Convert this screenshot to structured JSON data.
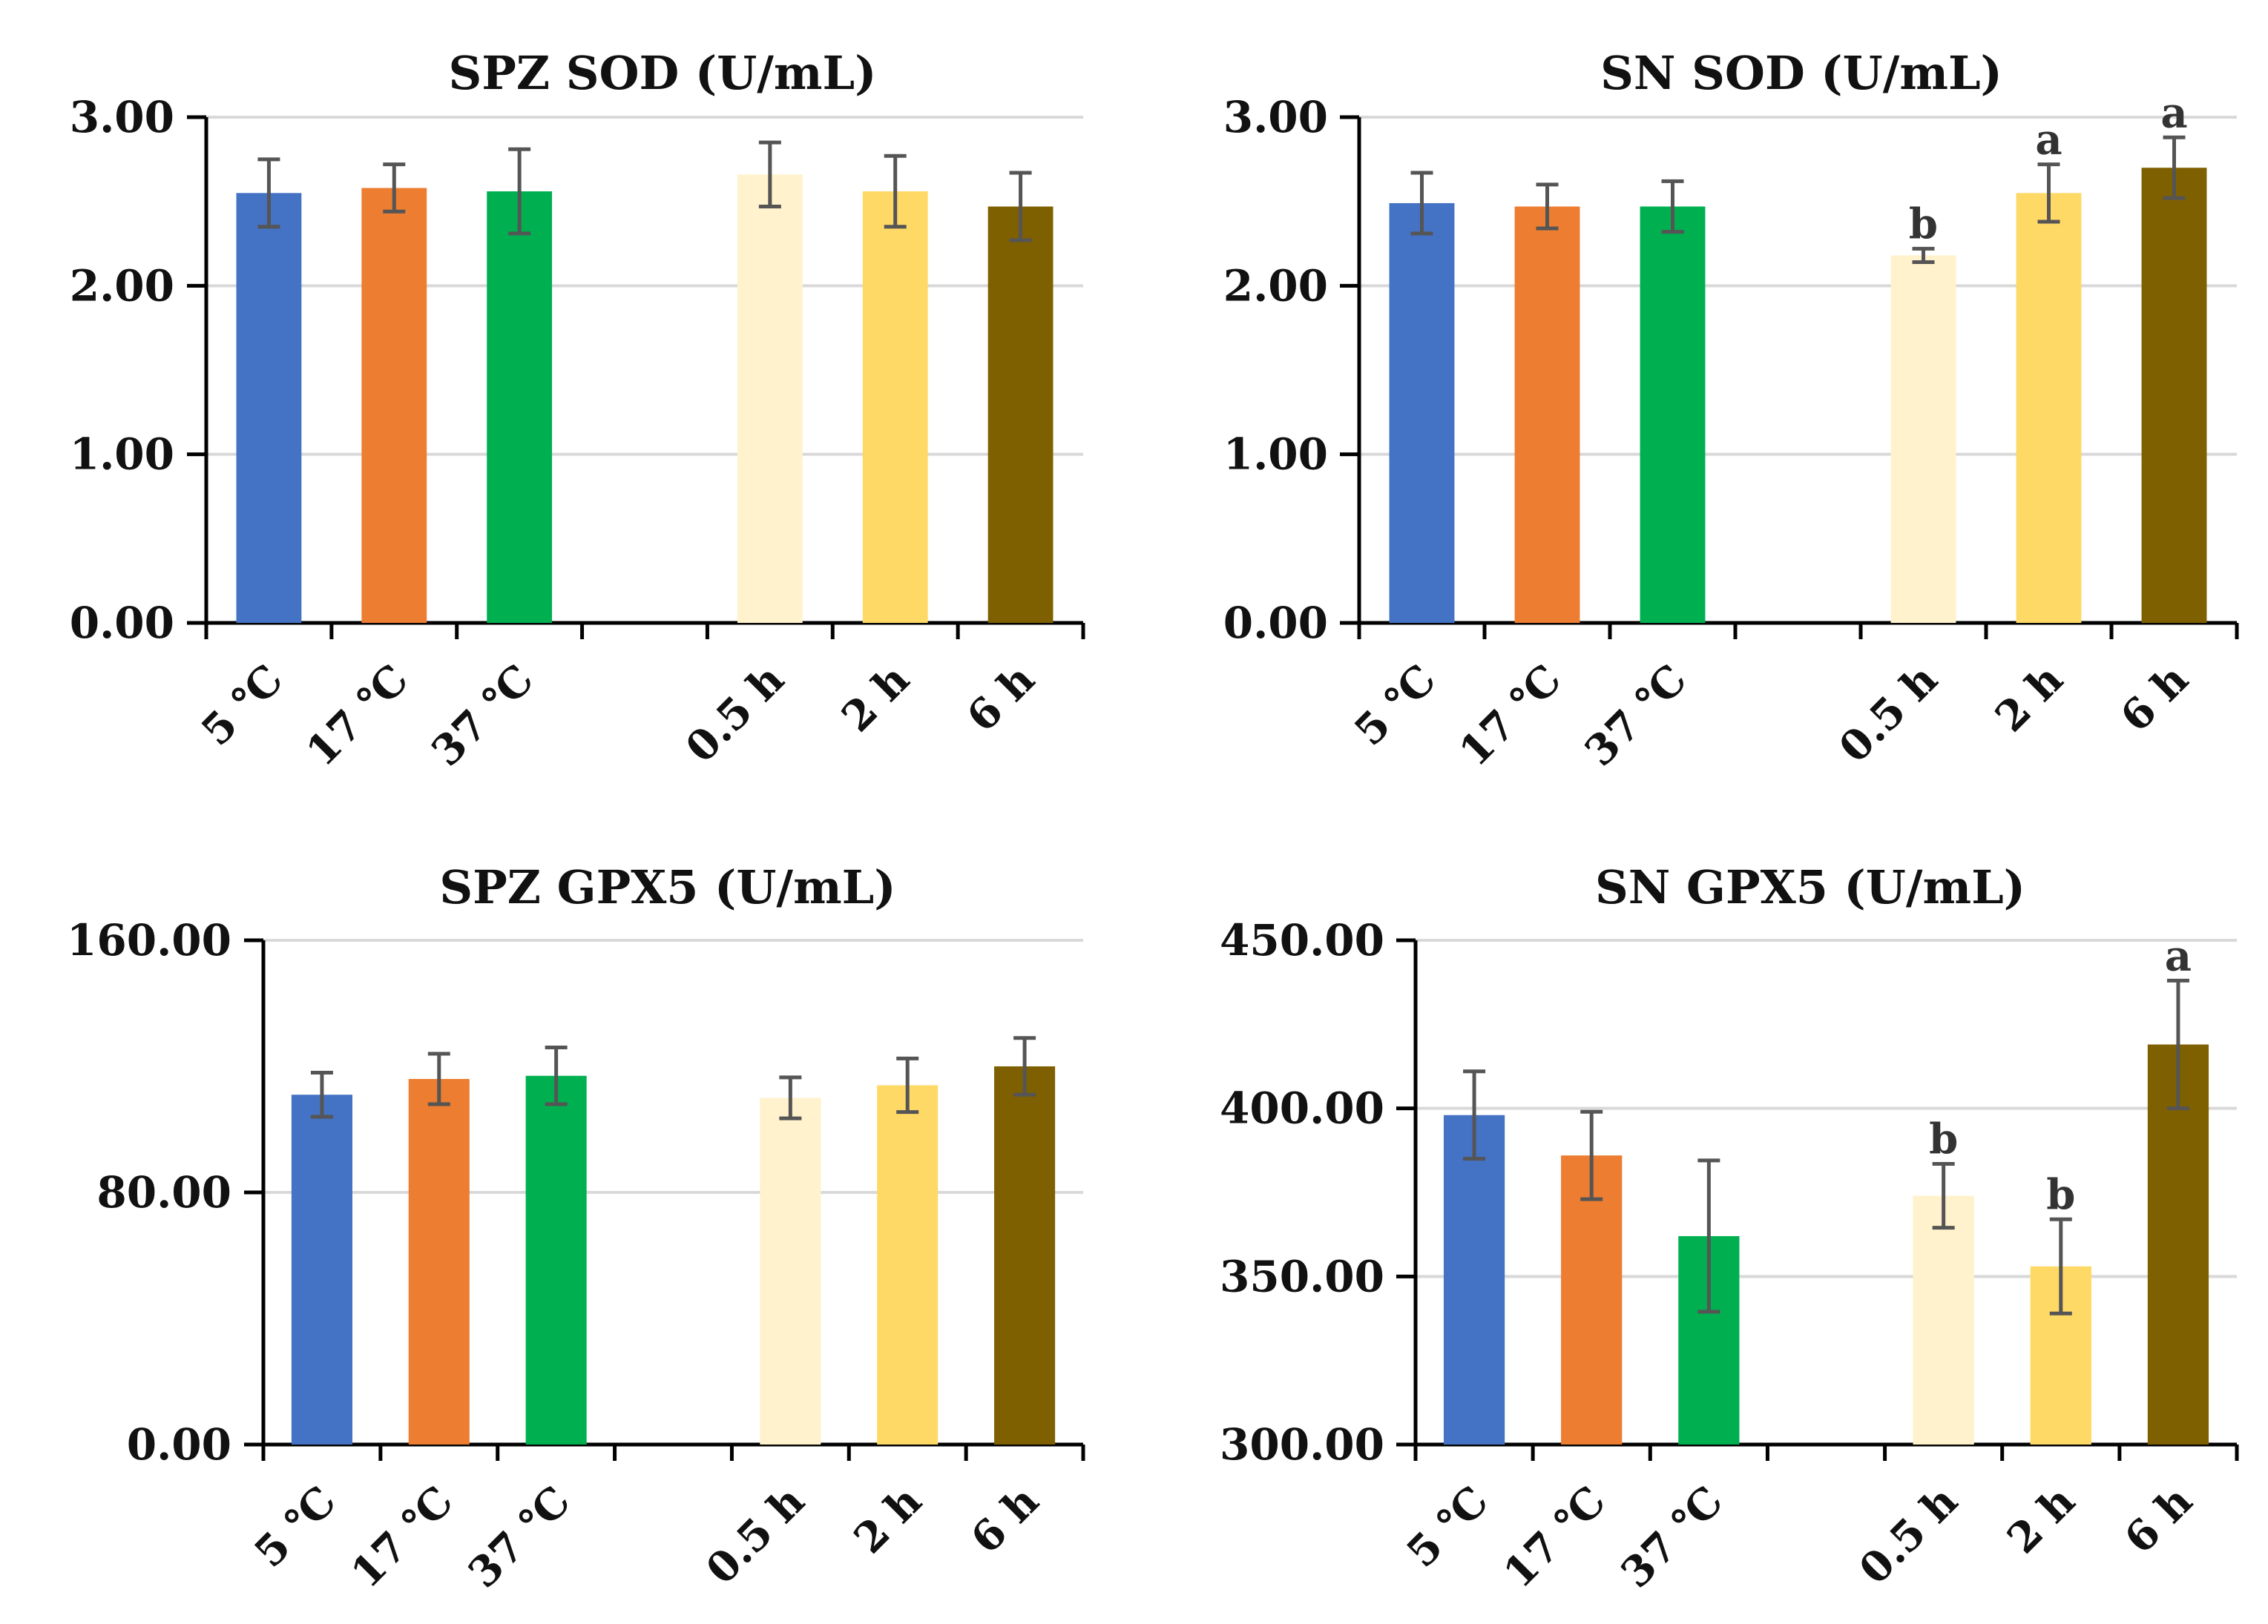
{
  "figure": {
    "categories": [
      "5 ℃",
      "17 ℃",
      "37 ℃",
      "0.5 h",
      "2 h",
      "6 h"
    ],
    "gap_after_index": 2,
    "colors": [
      "#4472C4",
      "#ED7D31",
      "#00B050",
      "#FFF2CC",
      "#FFD966",
      "#7F6000"
    ]
  },
  "chart_data": [
    {
      "type": "bar",
      "title": "SPZ SOD (U/mL)",
      "categories": [
        "5 ℃",
        "17 ℃",
        "37 ℃",
        "0.5 h",
        "2 h",
        "6 h"
      ],
      "values": [
        2.55,
        2.58,
        2.56,
        2.66,
        2.56,
        2.47
      ],
      "errors": [
        0.2,
        0.14,
        0.25,
        0.19,
        0.21,
        0.2
      ],
      "significance": [
        "",
        "",
        "",
        "",
        "",
        ""
      ],
      "ylim": [
        0,
        3
      ],
      "yticks": [
        0,
        1,
        2,
        3
      ],
      "ytick_labels": [
        "0.00",
        "1.00",
        "2.00",
        "3.00"
      ],
      "grid": true
    },
    {
      "type": "bar",
      "title": "SN SOD (U/mL)",
      "categories": [
        "5 ℃",
        "17 ℃",
        "37 ℃",
        "0.5 h",
        "2 h",
        "6 h"
      ],
      "values": [
        2.49,
        2.47,
        2.47,
        2.18,
        2.55,
        2.7
      ],
      "errors": [
        0.18,
        0.13,
        0.15,
        0.04,
        0.17,
        0.18
      ],
      "significance": [
        "",
        "",
        "",
        "b",
        "a",
        "a"
      ],
      "ylim": [
        0,
        3
      ],
      "yticks": [
        0,
        1,
        2,
        3
      ],
      "ytick_labels": [
        "0.00",
        "1.00",
        "2.00",
        "3.00"
      ],
      "grid": true
    },
    {
      "type": "bar",
      "title": "SPZ GPX5 (U/mL)",
      "categories": [
        "5 ℃",
        "17 ℃",
        "37 ℃",
        "0.5 h",
        "2 h",
        "6 h"
      ],
      "values": [
        111,
        116,
        117,
        110,
        114,
        120
      ],
      "errors": [
        7,
        8,
        9,
        6.5,
        8.5,
        9
      ],
      "significance": [
        "",
        "",
        "",
        "",
        "",
        ""
      ],
      "ylim": [
        0,
        160
      ],
      "yticks": [
        0,
        80,
        160
      ],
      "ytick_labels": [
        "0.00",
        "80.00",
        "160.00"
      ],
      "grid": true
    },
    {
      "type": "bar",
      "title": "SN GPX5 (U/mL)",
      "categories": [
        "5 ℃",
        "17 ℃",
        "37 ℃",
        "0.5 h",
        "2 h",
        "6 h"
      ],
      "values": [
        398,
        386,
        362,
        374,
        353,
        419
      ],
      "errors": [
        13,
        13,
        22.5,
        9.5,
        14,
        19
      ],
      "significance": [
        "",
        "",
        "",
        "b",
        "b",
        "a"
      ],
      "ylim": [
        300,
        450
      ],
      "yticks": [
        300,
        350,
        400,
        450
      ],
      "ytick_labels": [
        "300.00",
        "350.00",
        "400.00",
        "450.00"
      ],
      "grid": true
    }
  ]
}
